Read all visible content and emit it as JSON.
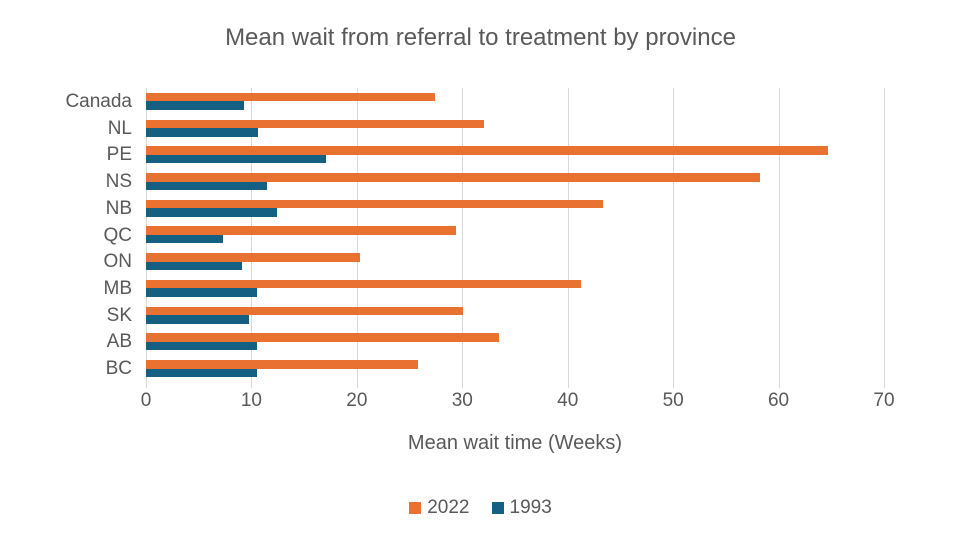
{
  "title": "Mean wait from referral to treatment by province",
  "chart_data": {
    "type": "bar",
    "orientation": "horizontal",
    "title": "Mean wait from referral to treatment by province",
    "xlabel": "Mean wait time (Weeks)",
    "categories": [
      "Canada",
      "NL",
      "PE",
      "NS",
      "NB",
      "QC",
      "ON",
      "MB",
      "SK",
      "AB",
      "BC"
    ],
    "series": [
      {
        "name": "2022",
        "color": "#E97132",
        "values": [
          27.4,
          32.1,
          64.7,
          58.2,
          43.3,
          29.4,
          20.3,
          41.3,
          30.1,
          33.5,
          25.8
        ]
      },
      {
        "name": "1993",
        "color": "#156082",
        "values": [
          9.3,
          10.6,
          17.1,
          11.5,
          12.4,
          7.3,
          9.1,
          10.5,
          9.8,
          10.5,
          10.5
        ]
      }
    ],
    "xlim": [
      0,
      70
    ],
    "xticks": [
      0,
      10,
      20,
      30,
      40,
      50,
      60,
      70
    ],
    "grid": true,
    "legend_position": "bottom",
    "colors": {
      "text": "#595959",
      "gridline": "#D9D9D9",
      "background": "#FFFFFF"
    }
  }
}
